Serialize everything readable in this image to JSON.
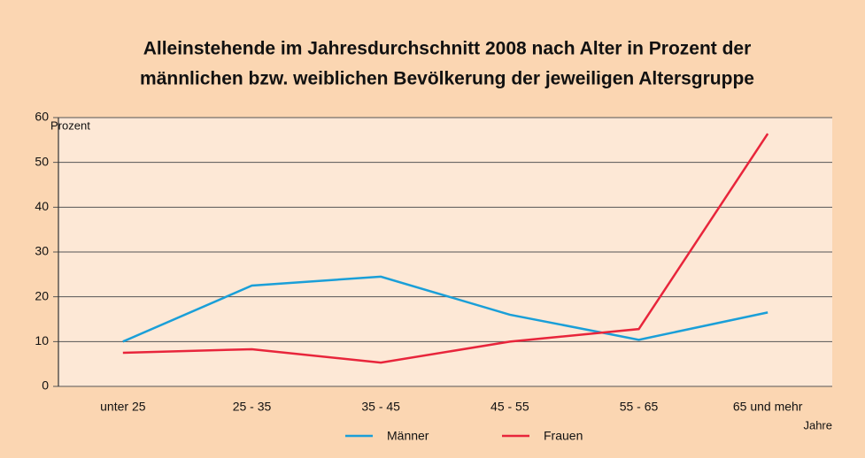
{
  "chart_data": {
    "type": "line",
    "title": [
      "Alleinstehende im Jahresdurchschnitt 2008 nach Alter in Prozent der",
      "männlichen bzw. weiblichen Bevölkerung der jeweiligen Altersgruppe"
    ],
    "y_label": "Prozent",
    "x_label": "Jahre",
    "categories": [
      "unter 25",
      "25 - 35",
      "35 - 45",
      "45 - 55",
      "55 - 65",
      "65 und mehr"
    ],
    "series": [
      {
        "name": "Männer",
        "color": "#1a9fd8",
        "values": [
          10,
          22.5,
          24.5,
          16,
          10.4,
          16.5
        ]
      },
      {
        "name": "Frauen",
        "color": "#e8253b",
        "values": [
          7.5,
          8.3,
          5.3,
          10,
          12.8,
          56.4
        ]
      }
    ],
    "ylim": [
      0,
      60
    ],
    "yticks": [
      0,
      10,
      20,
      30,
      40,
      50,
      60
    ],
    "grid": true,
    "legend": "bottom"
  }
}
